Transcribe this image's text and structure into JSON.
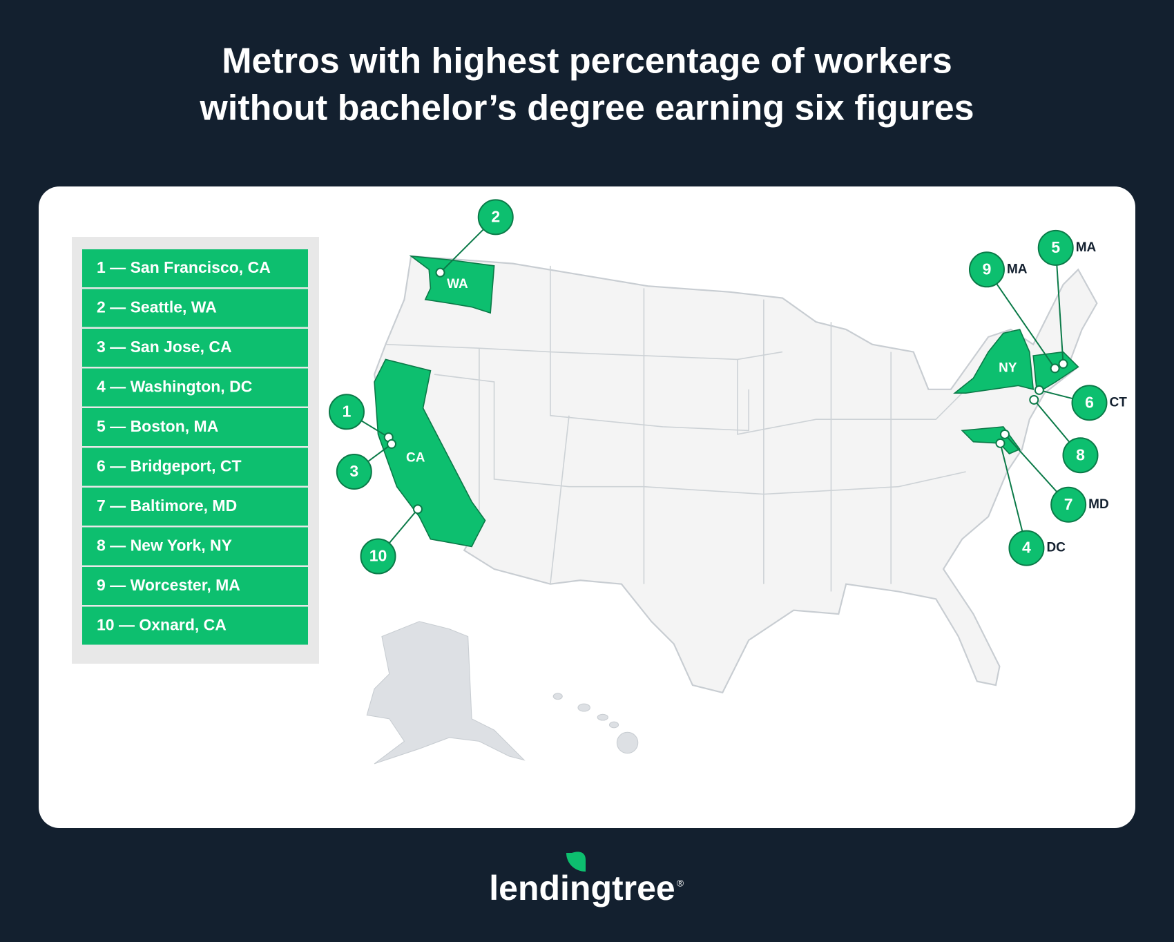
{
  "title": [
    "Metros with highest percentage of workers",
    "without bachelor’s degree earning six figures"
  ],
  "legend": [
    "1 — San Francisco, CA",
    "2 — Seattle, WA",
    "3 — San Jose, CA",
    "4 — Washington, DC",
    "5 — Boston, MA",
    "6 — Bridgeport, CT",
    "7 — Baltimore, MD",
    "8 — New York, NY",
    "9 — Worcester, MA",
    "10 — Oxnard, CA"
  ],
  "markers": [
    {
      "number": "1"
    },
    {
      "number": "2"
    },
    {
      "number": "3"
    },
    {
      "number": "4",
      "state": "DC"
    },
    {
      "number": "5",
      "state": "MA"
    },
    {
      "number": "6",
      "state": "CT"
    },
    {
      "number": "7",
      "state": "MD"
    },
    {
      "number": "8"
    },
    {
      "number": "9",
      "state": "MA"
    },
    {
      "number": "10"
    }
  ],
  "state_labels": [
    "WA",
    "CA",
    "NY"
  ],
  "logo": {
    "text": "lendingtree",
    "mark": "®"
  }
}
